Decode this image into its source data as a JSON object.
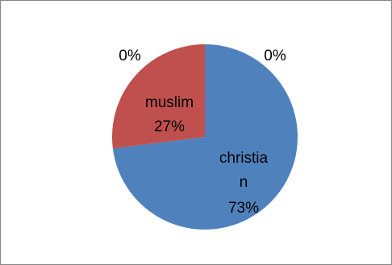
{
  "chart_data": {
    "type": "pie",
    "slices": [
      {
        "name": "christian",
        "value": 73,
        "label": "christia\nn\n73%",
        "color": "#4F81BD"
      },
      {
        "name": "muslim",
        "value": 27,
        "label": "muslim\n27%",
        "color": "#C0504D"
      },
      {
        "name": "",
        "value": 0,
        "label": "0%",
        "color": "#9BBB59"
      },
      {
        "name": "",
        "value": 0,
        "label": "0%",
        "color": "#8064A2"
      }
    ],
    "start_angle_deg": 0,
    "direction": "clockwise",
    "data_labels": [
      "christia",
      "n",
      "73%",
      "muslim",
      "27%",
      "0%",
      "0%"
    ]
  }
}
